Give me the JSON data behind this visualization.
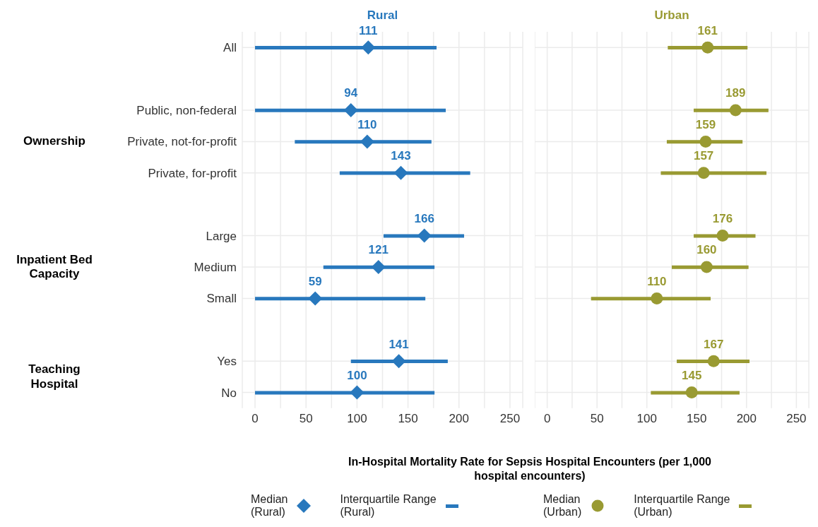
{
  "chart_data": [
    {
      "type": "bar",
      "orientation": "horizontal",
      "title": "Rural",
      "xlabel": "In-Hospital Mortality Rate for Sepsis Hospital Encounters (per 1,000 hospital encounters)",
      "categories": [
        "All",
        null,
        "Public, non-federal",
        "Private, not-for-profit",
        "Private, for-profit",
        null,
        "Large",
        "Medium",
        "Small",
        null,
        "Yes",
        "No"
      ],
      "series": [
        {
          "name": "Median (Rural)",
          "type": "scatter",
          "marker": "diamond",
          "color": "#2878bd",
          "values": [
            111,
            null,
            94,
            110,
            143,
            null,
            166,
            121,
            59,
            null,
            141,
            100
          ],
          "value_labels": [
            "111",
            null,
            "94",
            "110",
            "143",
            null,
            "166",
            "121",
            "59",
            null,
            "141",
            "100"
          ]
        },
        {
          "name": "Interquartile Range (Rural)",
          "type": "bar",
          "color": "#2878bd",
          "base": [
            0,
            null,
            0,
            39,
            83,
            null,
            126,
            67,
            0,
            null,
            94,
            0
          ],
          "values": [
            178,
            null,
            187,
            134,
            128,
            null,
            79,
            109,
            167,
            null,
            95,
            176
          ]
        }
      ],
      "xlim": [
        -12.5,
        262.5
      ],
      "xticks": [
        0,
        {
          "value": 25,
          "label": null
        },
        50,
        {
          "value": 75,
          "label": null
        },
        100,
        {
          "value": 125,
          "label": null
        },
        150,
        {
          "value": 175,
          "label": null
        },
        200,
        {
          "value": 225,
          "label": null
        },
        250
      ],
      "grid": true,
      "legend": "bottom",
      "annotations": [
        "Ownership",
        "Inpatient Bed Capacity",
        "Teaching Hospital"
      ]
    },
    {
      "type": "bar",
      "orientation": "horizontal",
      "title": "Urban",
      "categories": [
        null,
        null,
        null,
        null,
        null,
        null,
        null,
        null,
        null,
        null,
        null,
        null
      ],
      "series": [
        {
          "name": "Median (Urban)",
          "type": "scatter",
          "marker": "circle",
          "color": "#999a32",
          "values": [
            161,
            null,
            189,
            159,
            157,
            null,
            176,
            160,
            110,
            null,
            167,
            145
          ],
          "value_labels": [
            "161",
            null,
            "189",
            "159",
            "157",
            null,
            "176",
            "160",
            "110",
            null,
            "167",
            "145"
          ]
        },
        {
          "name": "Interquartile Range (Urban)",
          "type": "bar",
          "color": "#999a32",
          "base": [
            121,
            null,
            147,
            120,
            114,
            null,
            147,
            125,
            44,
            null,
            130,
            104
          ],
          "values": [
            80,
            null,
            75,
            76,
            106,
            null,
            62,
            77,
            120,
            null,
            73,
            89
          ]
        }
      ],
      "xlim": [
        -12.5,
        262.5
      ],
      "xticks": [
        0,
        {
          "value": 25,
          "label": null
        },
        50,
        {
          "value": 75,
          "label": null
        },
        100,
        {
          "value": 125,
          "label": null
        },
        150,
        {
          "value": 175,
          "label": null
        },
        200,
        {
          "value": 225,
          "label": null
        },
        250
      ],
      "grid": true,
      "legend": "bottom"
    }
  ]
}
